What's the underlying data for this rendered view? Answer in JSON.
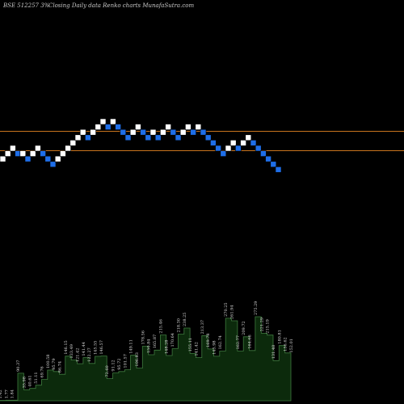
{
  "header": {
    "symbol": "BSE 512257 3%",
    "subtitle": "Closing Daily data  Renko  charts MunafaSutra.com"
  },
  "chart_data": {
    "type": "renko",
    "colors": {
      "up": "#ffffff",
      "down": "#1e6ee8",
      "level_line": "#c8741e",
      "volume_fill": "#0c2a0c",
      "volume_stroke": "#3f7a3f"
    },
    "price_levels": [
      142,
      135
    ],
    "bricks": [
      {
        "dir": "up",
        "level": 3
      },
      {
        "dir": "up",
        "level": 4
      },
      {
        "dir": "up",
        "level": 5
      },
      {
        "dir": "down",
        "level": 4
      },
      {
        "dir": "up",
        "level": 4
      },
      {
        "dir": "down",
        "level": 3
      },
      {
        "dir": "up",
        "level": 4
      },
      {
        "dir": "up",
        "level": 5
      },
      {
        "dir": "down",
        "level": 4
      },
      {
        "dir": "down",
        "level": 3
      },
      {
        "dir": "down",
        "level": 2
      },
      {
        "dir": "up",
        "level": 3
      },
      {
        "dir": "up",
        "level": 4
      },
      {
        "dir": "up",
        "level": 5
      },
      {
        "dir": "up",
        "level": 6
      },
      {
        "dir": "up",
        "level": 7
      },
      {
        "dir": "up",
        "level": 8
      },
      {
        "dir": "down",
        "level": 7
      },
      {
        "dir": "up",
        "level": 8
      },
      {
        "dir": "up",
        "level": 9
      },
      {
        "dir": "up",
        "level": 10
      },
      {
        "dir": "down",
        "level": 9
      },
      {
        "dir": "up",
        "level": 10
      },
      {
        "dir": "down",
        "level": 9
      },
      {
        "dir": "down",
        "level": 8
      },
      {
        "dir": "down",
        "level": 7
      },
      {
        "dir": "up",
        "level": 8
      },
      {
        "dir": "up",
        "level": 9
      },
      {
        "dir": "down",
        "level": 8
      },
      {
        "dir": "down",
        "level": 7
      },
      {
        "dir": "up",
        "level": 8
      },
      {
        "dir": "down",
        "level": 7
      },
      {
        "dir": "up",
        "level": 8
      },
      {
        "dir": "up",
        "level": 9
      },
      {
        "dir": "down",
        "level": 8
      },
      {
        "dir": "down",
        "level": 7
      },
      {
        "dir": "up",
        "level": 8
      },
      {
        "dir": "up",
        "level": 9
      },
      {
        "dir": "down",
        "level": 8
      },
      {
        "dir": "up",
        "level": 9
      },
      {
        "dir": "down",
        "level": 8
      },
      {
        "dir": "down",
        "level": 7
      },
      {
        "dir": "down",
        "level": 6
      },
      {
        "dir": "down",
        "level": 5
      },
      {
        "dir": "down",
        "level": 4
      },
      {
        "dir": "up",
        "level": 5
      },
      {
        "dir": "up",
        "level": 6
      },
      {
        "dir": "down",
        "level": 5
      },
      {
        "dir": "up",
        "level": 6
      },
      {
        "dir": "up",
        "level": 7
      },
      {
        "dir": "down",
        "level": 6
      },
      {
        "dir": "down",
        "level": 5
      },
      {
        "dir": "down",
        "level": 4
      },
      {
        "dir": "down",
        "level": 3
      },
      {
        "dir": "down",
        "level": 2
      },
      {
        "dir": "down",
        "level": 1
      }
    ],
    "volume_labels": [
      "1.42",
      "1.77",
      "1.84",
      "90.37",
      "35.98",
      "40.61",
      "51.11",
      "69.76",
      "100.58",
      "95.79",
      "86.74",
      "146.15",
      "133.49",
      "121.42",
      "141.44",
      "122.27",
      "145.55",
      "146.57",
      "72.60",
      "91.12",
      "95.72",
      "101.57",
      "149.11",
      "106.83",
      "178.56",
      "150.84",
      "165.87",
      "215.46",
      "148.28",
      "170.64",
      "218.30",
      "238.25",
      "155.11",
      "141.42",
      "213.37",
      "169.78",
      "145.98",
      "162.74",
      "270.25",
      "261.94",
      "162.77",
      "209.72",
      "164.66",
      "275.29",
      "221.29",
      "215.19",
      "131.48",
      "180.81",
      "156.62",
      "152.01"
    ]
  }
}
